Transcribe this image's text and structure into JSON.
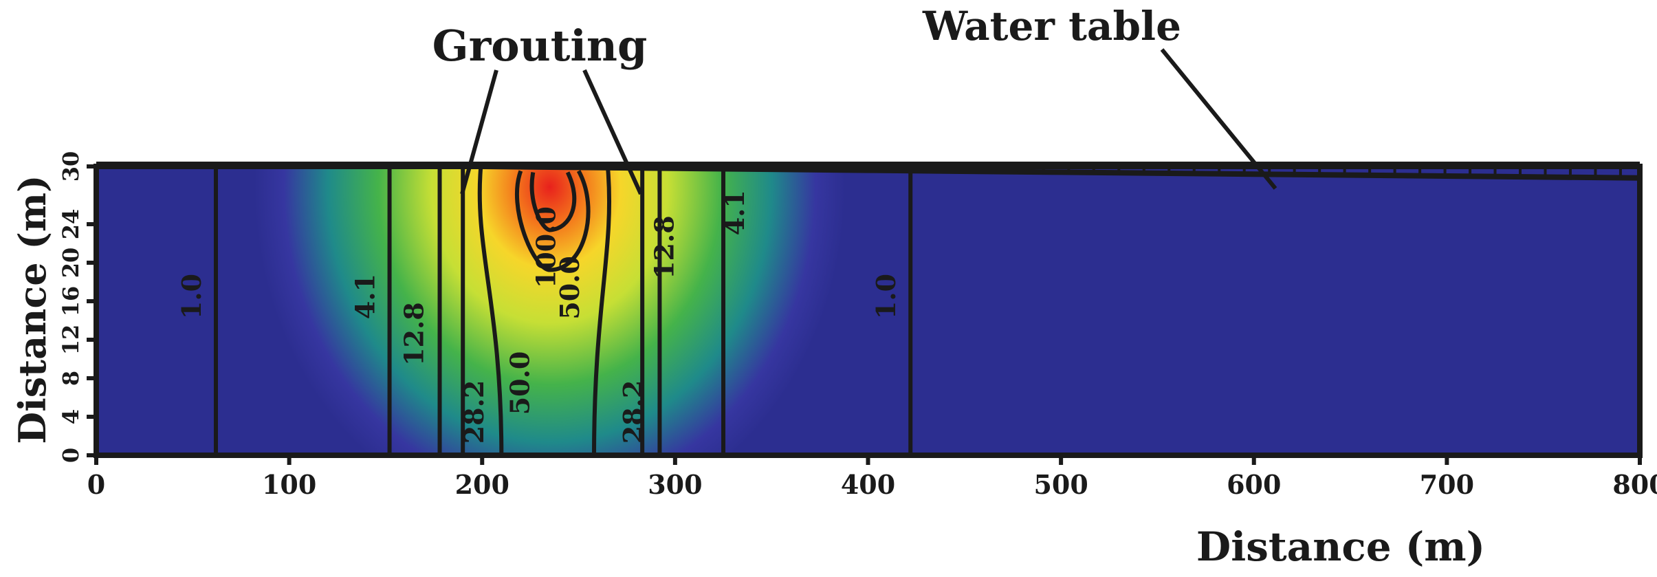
{
  "chart_data": {
    "type": "heatmap",
    "xlabel": "Distance (m)",
    "ylabel": "Distance (m)",
    "xlim": [
      0,
      800
    ],
    "ylim": [
      0,
      30
    ],
    "x_ticks": [
      "0",
      "100",
      "200",
      "300",
      "400",
      "500",
      "600",
      "700",
      "800"
    ],
    "y_ticks": [
      "0",
      "4",
      "8",
      "12",
      "16",
      "20",
      "24",
      "30"
    ],
    "annotations": {
      "grouting": "Grouting",
      "water_table": "Water table"
    },
    "colormap": [
      "#2a2d8f",
      "#3a3aa0",
      "#1f8a8a",
      "#3fb04a",
      "#c8e038",
      "#f6ec2a",
      "#f5a623",
      "#e8211c"
    ],
    "water_table_m": [
      30.0,
      30.0,
      30.0,
      29.8,
      29.6,
      29.4,
      29.2,
      29.0,
      28.8
    ],
    "max_concentration_x_m": 235,
    "contours": [
      {
        "label": "1.0",
        "x_m": 62
      },
      {
        "label": "4.1",
        "x_m": 152
      },
      {
        "label": "12.8",
        "x_m": 178
      },
      {
        "label": "28.2",
        "x_m": 190
      },
      {
        "label": "50.0",
        "x_m": 210
      },
      {
        "label": "100.0",
        "x_m": 220
      },
      {
        "label": "50.0",
        "x_m": 258
      },
      {
        "label": "28.2",
        "x_m": 283
      },
      {
        "label": "12.8",
        "x_m": 292
      },
      {
        "label": "4.1",
        "x_m": 325
      },
      {
        "label": "1.0",
        "x_m": 422
      }
    ]
  }
}
